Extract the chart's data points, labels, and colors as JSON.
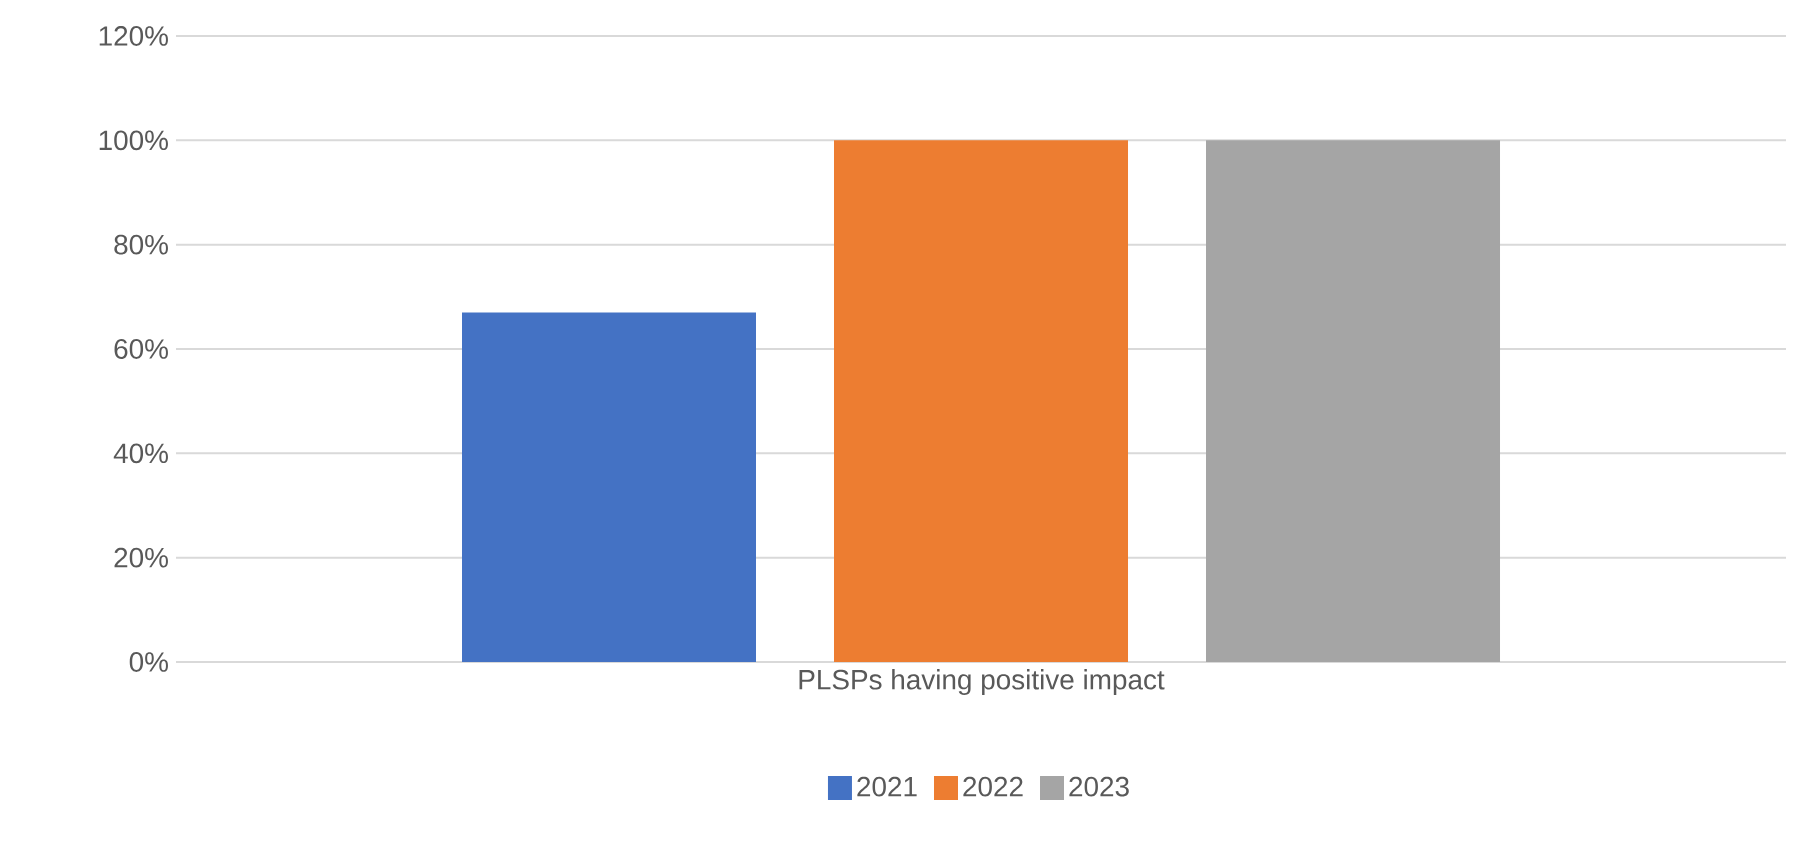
{
  "chart_data": {
    "type": "bar",
    "categories": [
      "PLSPs having positive impact"
    ],
    "series": [
      {
        "name": "2021",
        "color": "#4472c4",
        "values": [
          67
        ]
      },
      {
        "name": "2022",
        "color": "#ed7d31",
        "values": [
          100
        ]
      },
      {
        "name": "2023",
        "color": "#a5a5a5",
        "values": [
          100
        ]
      }
    ],
    "ylim": [
      0,
      120
    ],
    "yticks": [
      {
        "value": 0,
        "label": "0%"
      },
      {
        "value": 20,
        "label": "20%"
      },
      {
        "value": 40,
        "label": "40%"
      },
      {
        "value": 60,
        "label": "60%"
      },
      {
        "value": 80,
        "label": "80%"
      },
      {
        "value": 100,
        "label": "100%"
      },
      {
        "value": 120,
        "label": "120%"
      }
    ],
    "grid": "y",
    "legend": "bottom"
  }
}
